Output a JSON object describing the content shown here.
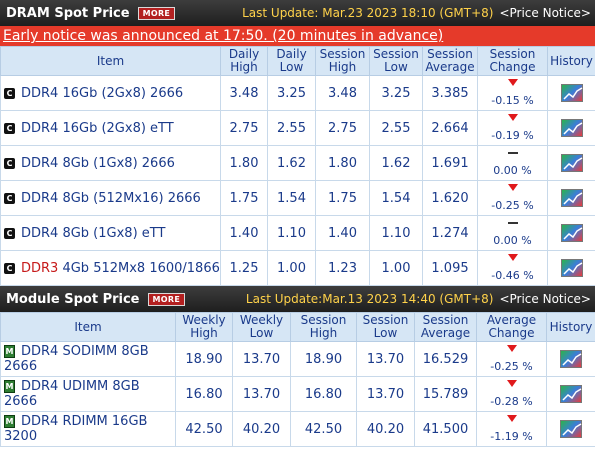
{
  "dram": {
    "title": "DRAM Spot Price",
    "more_label": "MORE",
    "last_update": "Last Update: Mar.23 2023 18:10 (GMT+8)",
    "notice_label": "<Price Notice>",
    "early_notice": "Early notice was announced at 17:50. (20 minutes in advance)",
    "headers": {
      "item": "Item",
      "daily_high": "Daily High",
      "daily_low": "Daily Low",
      "session_high": "Session High",
      "session_low": "Session Low",
      "session_avg": "Session Average",
      "session_change": "Session Change",
      "history": "History"
    },
    "rows": [
      {
        "prefix": "",
        "item": "DDR4 16Gb (2Gx8) 2666",
        "daily_high": "3.48",
        "daily_low": "3.25",
        "session_high": "3.48",
        "session_low": "3.25",
        "session_avg": "3.385",
        "change": "-0.15 %",
        "dir": "down"
      },
      {
        "prefix": "",
        "item": "DDR4 16Gb (2Gx8) eTT",
        "daily_high": "2.75",
        "daily_low": "2.55",
        "session_high": "2.75",
        "session_low": "2.55",
        "session_avg": "2.664",
        "change": "-0.19 %",
        "dir": "down"
      },
      {
        "prefix": "",
        "item": "DDR4 8Gb (1Gx8) 2666",
        "daily_high": "1.80",
        "daily_low": "1.62",
        "session_high": "1.80",
        "session_low": "1.62",
        "session_avg": "1.691",
        "change": "0.00 %",
        "dir": "flat"
      },
      {
        "prefix": "",
        "item": "DDR4 8Gb (512Mx16) 2666",
        "daily_high": "1.75",
        "daily_low": "1.54",
        "session_high": "1.75",
        "session_low": "1.54",
        "session_avg": "1.620",
        "change": "-0.25 %",
        "dir": "down"
      },
      {
        "prefix": "",
        "item": "DDR4 8Gb (1Gx8) eTT",
        "daily_high": "1.40",
        "daily_low": "1.10",
        "session_high": "1.40",
        "session_low": "1.10",
        "session_avg": "1.274",
        "change": "0.00 %",
        "dir": "flat"
      },
      {
        "prefix": "DDR3",
        "item": " 4Gb 512Mx8 1600/1866",
        "daily_high": "1.25",
        "daily_low": "1.00",
        "session_high": "1.23",
        "session_low": "1.00",
        "session_avg": "1.095",
        "change": "-0.46 %",
        "dir": "down"
      }
    ]
  },
  "module": {
    "title": "Module Spot Price",
    "more_label": "MORE",
    "last_update": "Last Update:Mar.13 2023 14:40 (GMT+8)",
    "notice_label": "<Price Notice>",
    "headers": {
      "item": "Item",
      "weekly_high": "Weekly High",
      "weekly_low": "Weekly Low",
      "session_high": "Session High",
      "session_low": "Session Low",
      "session_avg": "Session Average",
      "avg_change": "Average Change",
      "history": "History"
    },
    "rows": [
      {
        "item": "DDR4 SODIMM 8GB 2666",
        "weekly_high": "18.90",
        "weekly_low": "13.70",
        "session_high": "18.90",
        "session_low": "13.70",
        "session_avg": "16.529",
        "change": "-0.25 %",
        "dir": "down"
      },
      {
        "item": "DDR4 UDIMM 8GB 2666",
        "weekly_high": "16.80",
        "weekly_low": "13.70",
        "session_high": "16.80",
        "session_low": "13.70",
        "session_avg": "15.789",
        "change": "-0.28 %",
        "dir": "down"
      },
      {
        "item": "DDR4 RDIMM 16GB 3200",
        "weekly_high": "42.50",
        "weekly_low": "40.20",
        "session_high": "42.50",
        "session_low": "40.20",
        "session_avg": "41.500",
        "change": "-1.19 %",
        "dir": "down"
      }
    ]
  },
  "icons": {
    "dram_chip": "dram-chip-icon",
    "module_chip": "memory-module-icon",
    "history": "history-chart-icon",
    "down": "down-arrow-icon",
    "flat": "flat-dash-icon"
  },
  "colors": {
    "header_bar": "#2a2a2a",
    "early_notice_bg": "#e53a2a",
    "update_text": "#ffd24a",
    "table_header_bg": "#d6e6f5",
    "text": "#1a3a8a",
    "down": "#e0191c",
    "ddr3": "#c61a1a"
  }
}
